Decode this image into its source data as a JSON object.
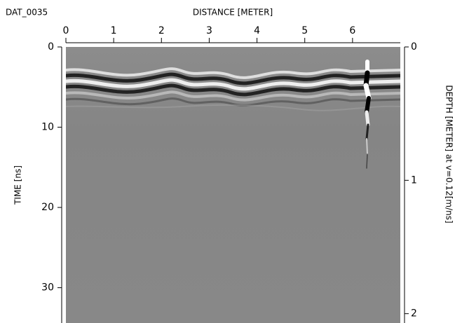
{
  "chart_data": {
    "type": "radargram",
    "title": "DAT_0035",
    "x_label": "DISTANCE [METER]",
    "y_label": "TIME [ns]",
    "y2_label": "DEPTH [METER] at v=0.12[m/ns]",
    "xlim": [
      0,
      7.0
    ],
    "xticks": [
      0,
      1,
      2,
      3,
      4,
      5,
      6
    ],
    "ylim": [
      0,
      34.4
    ],
    "yticks": [
      0,
      10,
      20,
      30
    ],
    "y2lim": [
      0,
      2.07
    ],
    "y2ticks": [
      0,
      1,
      2
    ]
  }
}
